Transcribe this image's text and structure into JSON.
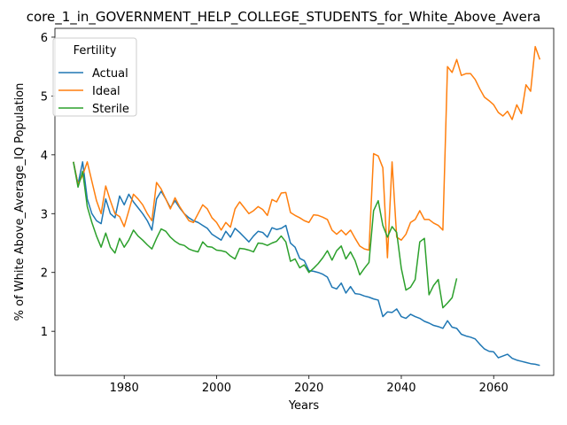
{
  "chart_data": {
    "type": "line",
    "title": "core_1_in_GOVERNMENT_HELP_COLLEGE_STUDENTS_for_White_Above_Avera",
    "xlabel": "Years",
    "ylabel": "% of White Above_Average_IQ Population",
    "xlim": [
      1965,
      2073
    ],
    "ylim": [
      0.25,
      6.15
    ],
    "xticks": [
      1980,
      2000,
      2020,
      2040,
      2060
    ],
    "yticks": [
      1,
      2,
      3,
      4,
      5,
      6
    ],
    "grid": false,
    "legend": {
      "title": "Fertility",
      "placement": "top-left"
    },
    "series": [
      {
        "name": "Actual",
        "color": "#1f77b4",
        "points": [
          [
            1969,
            3.88
          ],
          [
            1970,
            3.5
          ],
          [
            1971,
            3.88
          ],
          [
            1972,
            3.25
          ],
          [
            1973,
            3.0
          ],
          [
            1974,
            2.88
          ],
          [
            1975,
            2.83
          ],
          [
            1976,
            3.25
          ],
          [
            1977,
            3.0
          ],
          [
            1978,
            2.93
          ],
          [
            1979,
            3.3
          ],
          [
            1980,
            3.15
          ],
          [
            1981,
            3.33
          ],
          [
            1982,
            3.2
          ],
          [
            1983,
            3.1
          ],
          [
            1984,
            3.0
          ],
          [
            1985,
            2.88
          ],
          [
            1986,
            2.72
          ],
          [
            1987,
            3.25
          ],
          [
            1988,
            3.38
          ],
          [
            1989,
            3.25
          ],
          [
            1990,
            3.1
          ],
          [
            1991,
            3.22
          ],
          [
            1992,
            3.1
          ],
          [
            1993,
            3.0
          ],
          [
            1994,
            2.93
          ],
          [
            1995,
            2.88
          ],
          [
            1996,
            2.85
          ],
          [
            1997,
            2.8
          ],
          [
            1998,
            2.75
          ],
          [
            1999,
            2.65
          ],
          [
            2000,
            2.6
          ],
          [
            2001,
            2.55
          ],
          [
            2002,
            2.7
          ],
          [
            2003,
            2.6
          ],
          [
            2004,
            2.75
          ],
          [
            2005,
            2.68
          ],
          [
            2006,
            2.6
          ],
          [
            2007,
            2.52
          ],
          [
            2008,
            2.62
          ],
          [
            2009,
            2.7
          ],
          [
            2010,
            2.68
          ],
          [
            2011,
            2.6
          ],
          [
            2012,
            2.76
          ],
          [
            2013,
            2.73
          ],
          [
            2014,
            2.75
          ],
          [
            2015,
            2.8
          ],
          [
            2016,
            2.5
          ],
          [
            2017,
            2.43
          ],
          [
            2018,
            2.24
          ],
          [
            2019,
            2.2
          ],
          [
            2020,
            2.03
          ],
          [
            2021,
            2.02
          ],
          [
            2022,
            2.0
          ],
          [
            2023,
            1.97
          ],
          [
            2024,
            1.92
          ],
          [
            2025,
            1.75
          ],
          [
            2026,
            1.72
          ],
          [
            2027,
            1.82
          ],
          [
            2028,
            1.65
          ],
          [
            2029,
            1.76
          ],
          [
            2030,
            1.64
          ],
          [
            2031,
            1.63
          ],
          [
            2032,
            1.6
          ],
          [
            2033,
            1.58
          ],
          [
            2034,
            1.55
          ],
          [
            2035,
            1.53
          ],
          [
            2036,
            1.25
          ],
          [
            2037,
            1.33
          ],
          [
            2038,
            1.32
          ],
          [
            2039,
            1.38
          ],
          [
            2040,
            1.25
          ],
          [
            2041,
            1.22
          ],
          [
            2042,
            1.29
          ],
          [
            2043,
            1.25
          ],
          [
            2044,
            1.22
          ],
          [
            2045,
            1.17
          ],
          [
            2046,
            1.14
          ],
          [
            2047,
            1.1
          ],
          [
            2048,
            1.08
          ],
          [
            2049,
            1.05
          ],
          [
            2050,
            1.18
          ],
          [
            2051,
            1.07
          ],
          [
            2052,
            1.05
          ],
          [
            2053,
            0.95
          ],
          [
            2054,
            0.92
          ],
          [
            2055,
            0.9
          ],
          [
            2056,
            0.87
          ],
          [
            2057,
            0.78
          ],
          [
            2058,
            0.7
          ],
          [
            2059,
            0.66
          ],
          [
            2060,
            0.65
          ],
          [
            2061,
            0.55
          ],
          [
            2062,
            0.58
          ],
          [
            2063,
            0.61
          ],
          [
            2064,
            0.54
          ],
          [
            2065,
            0.51
          ],
          [
            2066,
            0.49
          ],
          [
            2067,
            0.47
          ],
          [
            2068,
            0.45
          ],
          [
            2069,
            0.44
          ],
          [
            2070,
            0.42
          ]
        ]
      },
      {
        "name": "Ideal",
        "color": "#ff7f0e",
        "points": [
          [
            1969,
            3.88
          ],
          [
            1970,
            3.5
          ],
          [
            1971,
            3.65
          ],
          [
            1972,
            3.88
          ],
          [
            1973,
            3.55
          ],
          [
            1974,
            3.22
          ],
          [
            1975,
            3.0
          ],
          [
            1976,
            3.47
          ],
          [
            1977,
            3.22
          ],
          [
            1978,
            3.0
          ],
          [
            1979,
            2.95
          ],
          [
            1980,
            2.78
          ],
          [
            1981,
            3.05
          ],
          [
            1982,
            3.33
          ],
          [
            1983,
            3.25
          ],
          [
            1984,
            3.15
          ],
          [
            1985,
            3.0
          ],
          [
            1986,
            2.88
          ],
          [
            1987,
            3.53
          ],
          [
            1988,
            3.42
          ],
          [
            1989,
            3.25
          ],
          [
            1990,
            3.08
          ],
          [
            1991,
            3.27
          ],
          [
            1992,
            3.12
          ],
          [
            1993,
            3.0
          ],
          [
            1994,
            2.88
          ],
          [
            1995,
            2.85
          ],
          [
            1996,
            3.0
          ],
          [
            1997,
            3.15
          ],
          [
            1998,
            3.08
          ],
          [
            1999,
            2.93
          ],
          [
            2000,
            2.85
          ],
          [
            2001,
            2.72
          ],
          [
            2002,
            2.85
          ],
          [
            2003,
            2.77
          ],
          [
            2004,
            3.08
          ],
          [
            2005,
            3.2
          ],
          [
            2006,
            3.1
          ],
          [
            2007,
            3.0
          ],
          [
            2008,
            3.05
          ],
          [
            2009,
            3.12
          ],
          [
            2010,
            3.07
          ],
          [
            2011,
            2.97
          ],
          [
            2012,
            3.24
          ],
          [
            2013,
            3.2
          ],
          [
            2014,
            3.35
          ],
          [
            2015,
            3.36
          ],
          [
            2016,
            3.02
          ],
          [
            2017,
            2.97
          ],
          [
            2018,
            2.93
          ],
          [
            2019,
            2.88
          ],
          [
            2020,
            2.85
          ],
          [
            2021,
            2.98
          ],
          [
            2022,
            2.97
          ],
          [
            2023,
            2.94
          ],
          [
            2024,
            2.9
          ],
          [
            2025,
            2.72
          ],
          [
            2026,
            2.65
          ],
          [
            2027,
            2.72
          ],
          [
            2028,
            2.64
          ],
          [
            2029,
            2.72
          ],
          [
            2030,
            2.58
          ],
          [
            2031,
            2.45
          ],
          [
            2032,
            2.4
          ],
          [
            2033,
            2.38
          ],
          [
            2034,
            4.02
          ],
          [
            2035,
            3.98
          ],
          [
            2036,
            3.78
          ],
          [
            2037,
            2.25
          ],
          [
            2038,
            3.88
          ],
          [
            2039,
            2.6
          ],
          [
            2040,
            2.55
          ],
          [
            2041,
            2.65
          ],
          [
            2042,
            2.85
          ],
          [
            2043,
            2.9
          ],
          [
            2044,
            3.05
          ],
          [
            2045,
            2.9
          ],
          [
            2046,
            2.9
          ],
          [
            2047,
            2.84
          ],
          [
            2048,
            2.8
          ],
          [
            2049,
            2.72
          ],
          [
            2050,
            5.5
          ],
          [
            2051,
            5.4
          ],
          [
            2052,
            5.62
          ],
          [
            2053,
            5.35
          ],
          [
            2054,
            5.38
          ],
          [
            2055,
            5.38
          ],
          [
            2056,
            5.28
          ],
          [
            2057,
            5.12
          ],
          [
            2058,
            4.98
          ],
          [
            2059,
            4.92
          ],
          [
            2060,
            4.85
          ],
          [
            2061,
            4.72
          ],
          [
            2062,
            4.66
          ],
          [
            2063,
            4.74
          ],
          [
            2064,
            4.6
          ],
          [
            2065,
            4.85
          ],
          [
            2066,
            4.7
          ],
          [
            2067,
            5.19
          ],
          [
            2068,
            5.08
          ],
          [
            2069,
            5.84
          ],
          [
            2070,
            5.62
          ]
        ]
      },
      {
        "name": "Sterile",
        "color": "#2ca02c",
        "points": [
          [
            1969,
            3.88
          ],
          [
            1970,
            3.45
          ],
          [
            1971,
            3.72
          ],
          [
            1972,
            3.12
          ],
          [
            1973,
            2.85
          ],
          [
            1974,
            2.62
          ],
          [
            1975,
            2.43
          ],
          [
            1976,
            2.67
          ],
          [
            1977,
            2.43
          ],
          [
            1978,
            2.33
          ],
          [
            1979,
            2.58
          ],
          [
            1980,
            2.43
          ],
          [
            1981,
            2.55
          ],
          [
            1982,
            2.72
          ],
          [
            1983,
            2.62
          ],
          [
            1984,
            2.55
          ],
          [
            1985,
            2.47
          ],
          [
            1986,
            2.4
          ],
          [
            1987,
            2.58
          ],
          [
            1988,
            2.74
          ],
          [
            1989,
            2.7
          ],
          [
            1990,
            2.6
          ],
          [
            1991,
            2.53
          ],
          [
            1992,
            2.48
          ],
          [
            1993,
            2.46
          ],
          [
            1994,
            2.4
          ],
          [
            1995,
            2.37
          ],
          [
            1996,
            2.35
          ],
          [
            1997,
            2.52
          ],
          [
            1998,
            2.44
          ],
          [
            1999,
            2.43
          ],
          [
            2000,
            2.38
          ],
          [
            2001,
            2.37
          ],
          [
            2002,
            2.35
          ],
          [
            2003,
            2.28
          ],
          [
            2004,
            2.23
          ],
          [
            2005,
            2.41
          ],
          [
            2006,
            2.4
          ],
          [
            2007,
            2.38
          ],
          [
            2008,
            2.35
          ],
          [
            2009,
            2.5
          ],
          [
            2010,
            2.49
          ],
          [
            2011,
            2.46
          ],
          [
            2012,
            2.5
          ],
          [
            2013,
            2.53
          ],
          [
            2014,
            2.62
          ],
          [
            2015,
            2.52
          ],
          [
            2016,
            2.19
          ],
          [
            2017,
            2.23
          ],
          [
            2018,
            2.08
          ],
          [
            2019,
            2.13
          ],
          [
            2020,
            2.0
          ],
          [
            2021,
            2.07
          ],
          [
            2022,
            2.15
          ],
          [
            2023,
            2.25
          ],
          [
            2024,
            2.37
          ],
          [
            2025,
            2.21
          ],
          [
            2026,
            2.37
          ],
          [
            2027,
            2.45
          ],
          [
            2028,
            2.23
          ],
          [
            2029,
            2.35
          ],
          [
            2030,
            2.2
          ],
          [
            2031,
            1.96
          ],
          [
            2032,
            2.07
          ],
          [
            2033,
            2.17
          ],
          [
            2034,
            3.05
          ],
          [
            2035,
            3.22
          ],
          [
            2036,
            2.8
          ],
          [
            2037,
            2.6
          ],
          [
            2038,
            2.78
          ],
          [
            2039,
            2.68
          ],
          [
            2040,
            2.07
          ],
          [
            2041,
            1.7
          ],
          [
            2042,
            1.75
          ],
          [
            2043,
            1.88
          ],
          [
            2044,
            2.52
          ],
          [
            2045,
            2.58
          ],
          [
            2046,
            1.62
          ],
          [
            2047,
            1.78
          ],
          [
            2048,
            1.88
          ],
          [
            2049,
            1.4
          ],
          [
            2050,
            1.48
          ],
          [
            2051,
            1.57
          ],
          [
            2052,
            1.9
          ]
        ]
      }
    ]
  }
}
